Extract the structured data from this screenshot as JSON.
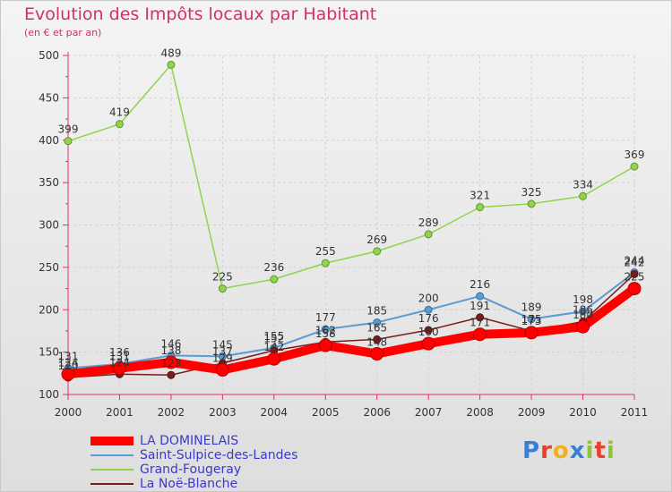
{
  "chart_data": {
    "type": "line",
    "title": "Evolution des Impôts locaux par Habitant",
    "subtitle": "(en € et par an)",
    "xlabel": "",
    "ylabel": "",
    "ylim": [
      100,
      500
    ],
    "yticks": [
      100,
      150,
      200,
      250,
      300,
      350,
      400,
      450,
      500
    ],
    "grid": true,
    "categories": [
      "2000",
      "2001",
      "2002",
      "2003",
      "2004",
      "2005",
      "2006",
      "2007",
      "2008",
      "2009",
      "2010",
      "2011"
    ],
    "series": [
      {
        "name": "LA DOMINELAIS",
        "color": "#ff0000",
        "values": [
          124,
          131,
          138,
          129,
          142,
          158,
          148,
          160,
          171,
          173,
          180,
          225
        ],
        "labels": [
          "124",
          "131",
          "138",
          "129",
          "142",
          "158",
          "148",
          "160",
          "171",
          "173",
          "180",
          "225"
        ]
      },
      {
        "name": "Saint-Sulpice-des-Landes",
        "color": "#5b9bd5",
        "values": [
          131,
          136,
          146,
          145,
          155,
          177,
          185,
          200,
          216,
          189,
          198,
          244
        ],
        "labels": [
          "131",
          "136",
          "146",
          "145",
          "155",
          "177",
          "185",
          "200",
          "216",
          "189",
          "198",
          "244"
        ]
      },
      {
        "name": "Grand-Fougeray",
        "color": "#8fd44a",
        "values": [
          399,
          419,
          489,
          225,
          236,
          255,
          269,
          289,
          321,
          325,
          334,
          369
        ],
        "labels": [
          "399",
          "419",
          "489",
          "225",
          "236",
          "255",
          "269",
          "289",
          "321",
          "325",
          "334",
          "369"
        ]
      },
      {
        "name": "La Noë-Blanche",
        "color": "#7a1c1c",
        "values": [
          120,
          124,
          123,
          137,
          152,
          162,
          165,
          176,
          191,
          175,
          186,
          242
        ],
        "labels": [
          "120",
          "124",
          "123",
          "137",
          "152",
          "162",
          "165",
          "176",
          "191",
          "175",
          "186",
          "242"
        ]
      }
    ],
    "legend_position": "bottom-left"
  },
  "branding": {
    "letters": [
      "P",
      "r",
      "o",
      "x",
      "i",
      "t",
      "i"
    ],
    "colors": [
      "#3a7fd5",
      "#e8402a",
      "#f2b01e",
      "#3a7fd5",
      "#8fc43a",
      "#e8402a",
      "#8fc43a"
    ]
  }
}
